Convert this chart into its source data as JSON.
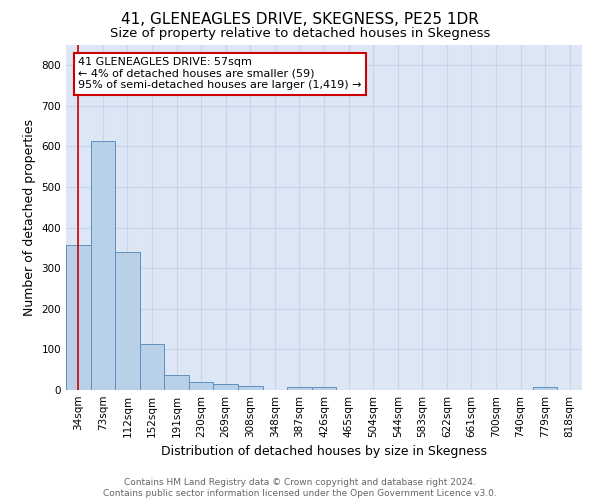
{
  "title": "41, GLENEAGLES DRIVE, SKEGNESS, PE25 1DR",
  "subtitle": "Size of property relative to detached houses in Skegness",
  "xlabel": "Distribution of detached houses by size in Skegness",
  "ylabel": "Number of detached properties",
  "footer_line1": "Contains HM Land Registry data © Crown copyright and database right 2024.",
  "footer_line2": "Contains public sector information licensed under the Open Government Licence v3.0.",
  "bar_labels": [
    "34sqm",
    "73sqm",
    "112sqm",
    "152sqm",
    "191sqm",
    "230sqm",
    "269sqm",
    "308sqm",
    "348sqm",
    "387sqm",
    "426sqm",
    "465sqm",
    "504sqm",
    "544sqm",
    "583sqm",
    "622sqm",
    "661sqm",
    "700sqm",
    "740sqm",
    "779sqm",
    "818sqm"
  ],
  "bar_heights": [
    358,
    614,
    340,
    113,
    38,
    20,
    15,
    9,
    0,
    8,
    8,
    0,
    0,
    0,
    0,
    0,
    0,
    0,
    0,
    7,
    0
  ],
  "bar_color": "#b8d0e8",
  "bar_edge_color": "#6090c0",
  "annotation_box_text": "41 GLENEAGLES DRIVE: 57sqm\n← 4% of detached houses are smaller (59)\n95% of semi-detached houses are larger (1,419) →",
  "annotation_box_color": "#ffffff",
  "annotation_box_edge_color": "#cc0000",
  "vline_color": "#cc0000",
  "ylim": [
    0,
    850
  ],
  "yticks": [
    0,
    100,
    200,
    300,
    400,
    500,
    600,
    700,
    800
  ],
  "grid_color": "#c8d4e8",
  "background_color": "#dce6f4",
  "title_fontsize": 11,
  "subtitle_fontsize": 9.5,
  "axis_label_fontsize": 9,
  "tick_fontsize": 7.5,
  "footer_fontsize": 6.5,
  "annotation_fontsize": 8
}
